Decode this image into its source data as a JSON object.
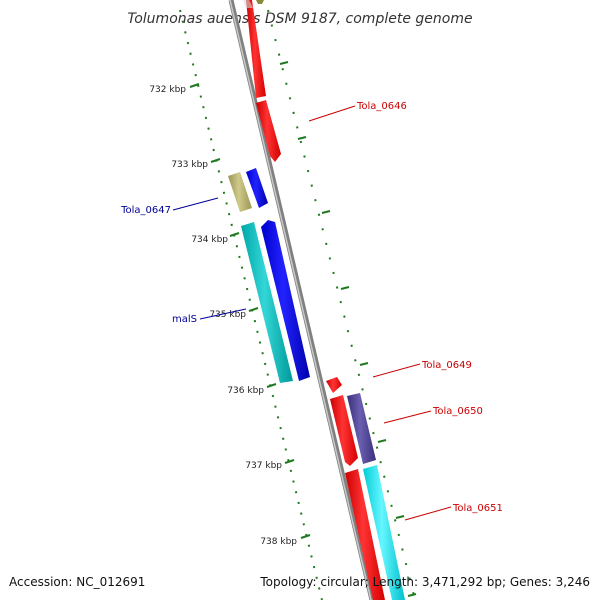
{
  "title": "Tolumonas auensis DSM 9187, complete genome",
  "footer": {
    "accession": "Accession: NC_012691",
    "topology": "Topology: circular; Length: 3,471,292 bp; Genes: 3,246"
  },
  "colors": {
    "backbone": "#8c8c8c",
    "tick": "#1f7a1f",
    "red_gene": "#ff0000",
    "blue_gene": "#0000ee",
    "cyan_gene": "#00bfbf",
    "slate_gene": "#4b3f8f",
    "olive_gene": "#b5b06b",
    "bright_cyan_gene": "#00e5ee",
    "red_label": "#cc0000",
    "blue_label": "#000099"
  },
  "ticks": [
    {
      "label": "732 kbp"
    },
    {
      "label": "733 kbp"
    },
    {
      "label": "734 kbp"
    },
    {
      "label": "735 kbp"
    },
    {
      "label": "736 kbp"
    },
    {
      "label": "737 kbp"
    },
    {
      "label": "738 kbp"
    }
  ],
  "gene_labels": [
    {
      "text": "Tola_0646",
      "color": "red"
    },
    {
      "text": "Tola_0647",
      "color": "blue"
    },
    {
      "text": "malS",
      "color": "blue"
    },
    {
      "text": "Tola_0649",
      "color": "red"
    },
    {
      "text": "Tola_0650",
      "color": "red"
    },
    {
      "text": "Tola_0651",
      "color": "red"
    }
  ]
}
